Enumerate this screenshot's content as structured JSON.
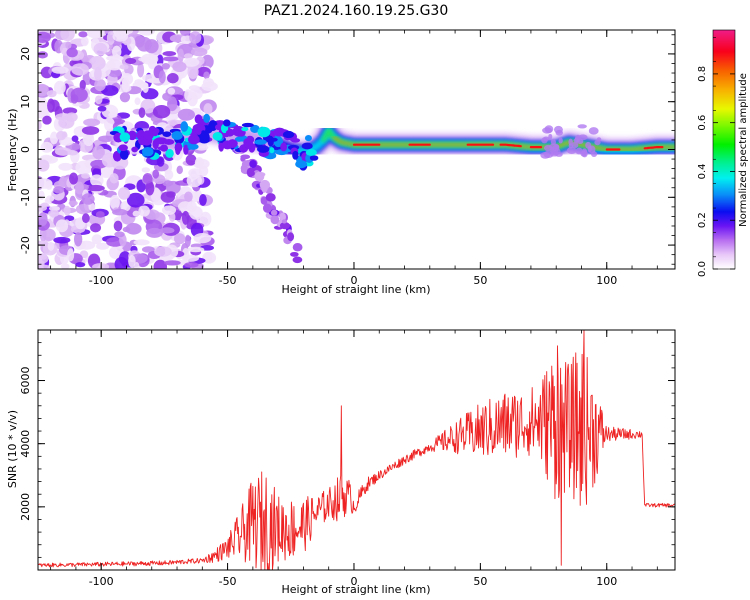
{
  "chart_data": [
    {
      "type": "heatmap",
      "title": "PAZ1.2024.160.19.25.G30",
      "xlabel": "Height of straight line (km)",
      "ylabel": "Frequency (Hz)",
      "xlim": [
        -125,
        127
      ],
      "ylim": [
        -25,
        25
      ],
      "xticks": [
        -100,
        -50,
        0,
        50,
        100
      ],
      "xtick_labels": [
        "-100",
        "-50",
        "0",
        "50",
        "100"
      ],
      "yticks": [
        -20,
        -10,
        0,
        10,
        20
      ],
      "ytick_labels": [
        "-20",
        "-10",
        "0",
        "10",
        "20"
      ],
      "colorbar": {
        "label": "Normalized spectral amplitude",
        "range": [
          0,
          0.98
        ],
        "ticks": [
          0,
          0.2,
          0.4,
          0.6,
          0.8
        ],
        "tick_labels": [
          "0.0",
          "0.2",
          "0.4",
          "0.6",
          "0.8"
        ],
        "colormap": "gist_ncar_r"
      },
      "ridge": {
        "x": [
          -120,
          -110,
          -100,
          -90,
          -80,
          -70,
          -65,
          -60,
          -55,
          -50,
          -45,
          -40,
          -35,
          -30,
          -25,
          -20,
          -15,
          -12,
          -10,
          -8,
          -5,
          0,
          10,
          20,
          30,
          40,
          50,
          60,
          70,
          80,
          85,
          90,
          95,
          100,
          110,
          120,
          127
        ],
        "y": [
          1.5,
          1.5,
          1.5,
          1.5,
          1.5,
          2,
          3,
          4,
          3.5,
          3,
          2.5,
          2,
          1.5,
          1,
          0,
          -0.5,
          0.5,
          2,
          4,
          2.5,
          1.5,
          1,
          1,
          1,
          1,
          1,
          1,
          1,
          0.5,
          0.5,
          1.5,
          1,
          0.5,
          0,
          0,
          0.5,
          0.5
        ]
      }
    },
    {
      "type": "line",
      "title": "",
      "xlabel": "Height of straight line (km)",
      "ylabel": "SNR (10 * v/v)",
      "xlim": [
        -125,
        127
      ],
      "ylim": [
        0,
        7600
      ],
      "xticks": [
        -100,
        -50,
        0,
        50,
        100
      ],
      "xtick_labels": [
        "-100",
        "-50",
        "0",
        "50",
        "100"
      ],
      "yticks": [
        2000,
        4000,
        6000
      ],
      "ytick_labels": [
        "2000",
        "4000",
        "6000"
      ],
      "line_color": "#ee2222",
      "envelope": {
        "x": [
          -125,
          -100,
          -75,
          -60,
          -55,
          -50,
          -45,
          -40,
          -35,
          -30,
          -25,
          -20,
          -15,
          -10,
          -5,
          -2,
          0,
          5,
          10,
          20,
          30,
          40,
          50,
          60,
          70,
          80,
          85,
          90,
          95,
          100,
          105,
          110,
          114,
          115,
          120,
          127
        ],
        "y": [
          150,
          180,
          220,
          300,
          450,
          700,
          1100,
          1500,
          1500,
          1300,
          1300,
          1400,
          1800,
          2100,
          2300,
          2400,
          2000,
          2700,
          3000,
          3500,
          3900,
          4200,
          4400,
          4600,
          4700,
          4700,
          4500,
          4500,
          4400,
          4300,
          4300,
          4300,
          4300,
          2050,
          2050,
          2050
        ]
      },
      "oscillation_amplitude": {
        "x": [
          -125,
          -60,
          -50,
          -45,
          -40,
          -35,
          -30,
          -25,
          -20,
          -15,
          -10,
          -5,
          0,
          10,
          20,
          30,
          40,
          50,
          60,
          70,
          75,
          80,
          85,
          90,
          95,
          100,
          114,
          115,
          127
        ],
        "y": [
          60,
          80,
          350,
          800,
          1400,
          1800,
          1100,
          1000,
          900,
          600,
          500,
          800,
          300,
          150,
          150,
          150,
          500,
          900,
          1100,
          1100,
          1600,
          2600,
          2000,
          2800,
          1800,
          250,
          120,
          60,
          60
        ]
      },
      "spikes": [
        {
          "x": -5,
          "y": 5200
        },
        {
          "x": 80.5,
          "y": 7100
        },
        {
          "x": 82,
          "y": 150
        },
        {
          "x": 91,
          "y": 7600
        }
      ]
    }
  ]
}
